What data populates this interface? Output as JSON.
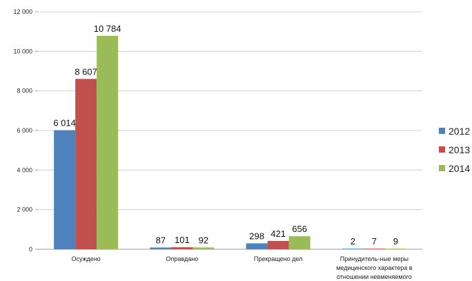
{
  "chart_data": {
    "type": "bar",
    "categories": [
      [
        "Осуждено"
      ],
      [
        "Оправдано"
      ],
      [
        "Прекращено дел"
      ],
      [
        "Принудитель-ные меры",
        "медицинского характера в",
        "отношении невменяемого"
      ]
    ],
    "series": [
      {
        "name": "2012",
        "color": "#4F81BD",
        "values": [
          6014,
          87,
          298,
          2
        ],
        "labels": [
          "6 014",
          "87",
          "298",
          "2"
        ]
      },
      {
        "name": "2013",
        "color": "#C0504D",
        "values": [
          8607,
          101,
          421,
          7
        ],
        "labels": [
          "8 607",
          "101",
          "421",
          "7"
        ]
      },
      {
        "name": "2014",
        "color": "#9BBB59",
        "values": [
          10784,
          92,
          656,
          9
        ],
        "labels": [
          "10 784",
          "92",
          "656",
          "9"
        ]
      }
    ],
    "ylim": [
      0,
      12000
    ],
    "yticks": [
      0,
      2000,
      4000,
      6000,
      8000,
      10000,
      12000
    ],
    "ytick_labels": [
      "0",
      "2 000",
      "4 000",
      "6 000",
      "8 000",
      "10 000",
      "12 000"
    ],
    "grid": true,
    "legend_position": "right"
  }
}
